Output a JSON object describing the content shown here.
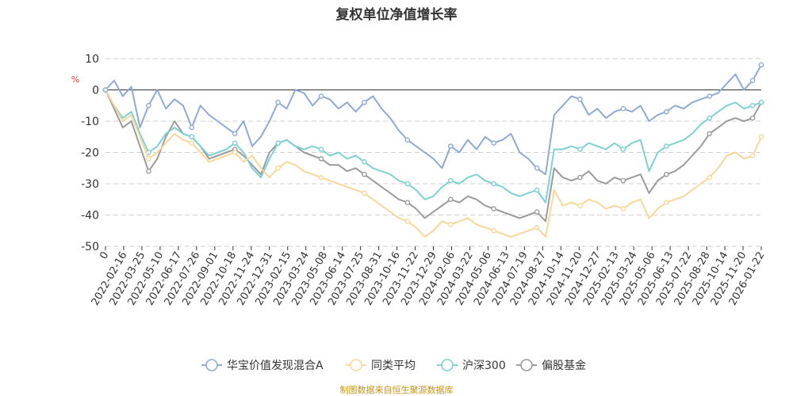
{
  "chart_data": {
    "type": "line",
    "title": "复权单位净值增长率",
    "ylabel": "%",
    "ylim": [
      -50,
      10
    ],
    "yticks": [
      10,
      0,
      -10,
      -20,
      -30,
      -40,
      -50
    ],
    "x_tick_labels": [
      "0",
      "2022-02-16",
      "2022-03-25",
      "2022-05-10",
      "2022-06-17",
      "2022-07-26",
      "2022-09-01",
      "2022-10-18",
      "2022-11-24",
      "2022-12-31",
      "2023-02-15",
      "2023-03-24",
      "2023-05-08",
      "2023-06-14",
      "2023-07-25",
      "2023-08-31",
      "2023-10-16",
      "2023-11-22",
      "2023-12-29",
      "2024-02-06",
      "2024-03-22",
      "2024-05-06",
      "2024-06-13",
      "2024-07-19",
      "2024-08-27",
      "2024-10-14",
      "2024-11-20",
      "2024-12-27",
      "2025-02-13",
      "2025-03-24",
      "2025-05-06",
      "2025-06-13",
      "2025-07-22",
      "2025-08-28",
      "2025-10-14",
      "2025-11-20",
      "2026-01-22"
    ],
    "grid": true,
    "legend_position": "bottom",
    "series": [
      {
        "name": "华宝价值发现混合A",
        "color": "#8eaad6",
        "values": [
          0,
          3,
          -2,
          1,
          -12,
          -5,
          0,
          -6,
          -3,
          -5,
          -12,
          -5,
          -8,
          -10,
          -12,
          -14,
          -10,
          -18,
          -15,
          -10,
          -4,
          -6,
          0,
          -1,
          -5,
          -2,
          -3,
          -6,
          -4,
          -7,
          -4,
          -2,
          -6,
          -9,
          -13,
          -16,
          -18,
          -20,
          -22,
          -25,
          -18,
          -20,
          -16,
          -19,
          -15,
          -17,
          -16,
          -14,
          -20,
          -22,
          -25,
          -27,
          -8,
          -5,
          -2,
          -3,
          -8,
          -6,
          -9,
          -7,
          -6,
          -7,
          -5,
          -10,
          -8,
          -7,
          -5,
          -6,
          -4,
          -3,
          -2,
          -1,
          2,
          5,
          0,
          3,
          8
        ]
      },
      {
        "name": "同类平均",
        "color": "#f8d79b",
        "values": [
          0,
          -5,
          -10,
          -8,
          -15,
          -22,
          -20,
          -17,
          -14,
          -16,
          -17,
          -20,
          -23,
          -22,
          -21,
          -20,
          -23,
          -21,
          -25,
          -28,
          -25,
          -23,
          -24,
          -26,
          -27,
          -28,
          -29,
          -30,
          -31,
          -32,
          -33,
          -35,
          -37,
          -39,
          -41,
          -42,
          -44,
          -47,
          -45,
          -42,
          -43,
          -42,
          -41,
          -43,
          -44,
          -45,
          -46,
          -47,
          -46,
          -45,
          -44,
          -47,
          -32,
          -37,
          -36,
          -37,
          -35,
          -36,
          -38,
          -37,
          -38,
          -36,
          -35,
          -41,
          -38,
          -36,
          -35,
          -34,
          -32,
          -30,
          -28,
          -25,
          -21,
          -20,
          -22,
          -21,
          -15
        ]
      },
      {
        "name": "沪深300",
        "color": "#7dd1d2",
        "values": [
          0,
          -5,
          -9,
          -7,
          -14,
          -20,
          -18,
          -14,
          -12,
          -14,
          -15,
          -18,
          -21,
          -20,
          -19,
          -17,
          -20,
          -25,
          -28,
          -22,
          -17,
          -16,
          -18,
          -19,
          -18,
          -19,
          -21,
          -20,
          -22,
          -21,
          -23,
          -25,
          -26,
          -27,
          -29,
          -30,
          -32,
          -35,
          -34,
          -31,
          -29,
          -30,
          -28,
          -27,
          -29,
          -30,
          -31,
          -33,
          -34,
          -33,
          -32,
          -36,
          -19,
          -19,
          -18,
          -19,
          -17,
          -18,
          -19,
          -17,
          -19,
          -17,
          -16,
          -26,
          -20,
          -18,
          -17,
          -16,
          -14,
          -11,
          -9,
          -7,
          -5,
          -4,
          -6,
          -5,
          -4
        ]
      },
      {
        "name": "偏股基金",
        "color": "#9b9b9b",
        "values": [
          0,
          -6,
          -12,
          -10,
          -18,
          -26,
          -22,
          -15,
          -10,
          -14,
          -15,
          -18,
          -22,
          -21,
          -20,
          -19,
          -21,
          -24,
          -27,
          -20,
          -17,
          -16,
          -18,
          -20,
          -21,
          -22,
          -24,
          -24,
          -26,
          -25,
          -27,
          -29,
          -31,
          -33,
          -35,
          -36,
          -38,
          -41,
          -39,
          -37,
          -35,
          -36,
          -34,
          -35,
          -37,
          -38,
          -39,
          -40,
          -41,
          -40,
          -39,
          -42,
          -25,
          -28,
          -29,
          -28,
          -26,
          -29,
          -30,
          -28,
          -29,
          -28,
          -27,
          -33,
          -29,
          -27,
          -26,
          -24,
          -21,
          -18,
          -14,
          -12,
          -10,
          -9,
          -10,
          -9,
          -4
        ]
      }
    ]
  },
  "source_note": "制图数据来自恒生聚源数据库",
  "source_note_color": "#c8920e",
  "ylabel_color": "#e04030"
}
